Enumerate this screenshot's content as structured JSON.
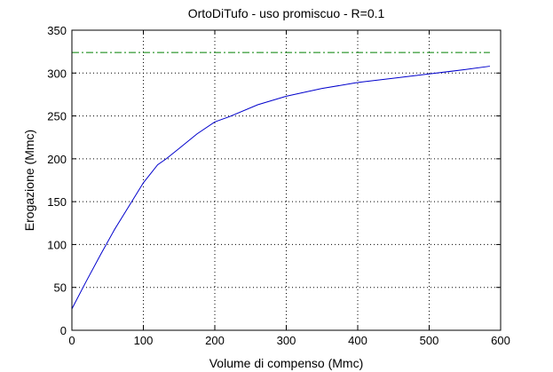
{
  "chart_data": {
    "type": "line",
    "title": "OrtoDiTufo  -  uso promiscuo  -   R=0.1",
    "xlabel": "Volume di compenso (Mmc)",
    "ylabel": "Erogazione (Mmc)",
    "xlim": [
      0,
      600
    ],
    "ylim": [
      0,
      350
    ],
    "xticks": [
      0,
      100,
      200,
      300,
      400,
      500,
      600
    ],
    "yticks": [
      0,
      50,
      100,
      150,
      200,
      250,
      300,
      350
    ],
    "xtick_labels": [
      "0",
      "100",
      "200",
      "300",
      "400",
      "500",
      "600"
    ],
    "ytick_labels": [
      "0",
      "50",
      "100",
      "150",
      "200",
      "250",
      "300",
      "350"
    ],
    "grid": true,
    "grid_style": "dotted",
    "series": [
      {
        "style": "solid",
        "color": "#0000cc",
        "x": [
          0,
          20,
          40,
          60,
          80,
          100,
          120,
          132,
          150,
          175,
          200,
          220,
          260,
          300,
          350,
          400,
          450,
          500,
          550,
          585
        ],
        "y": [
          25,
          57,
          88,
          118,
          145,
          172,
          193,
          200,
          212,
          229,
          243,
          249,
          263,
          273,
          282,
          289,
          294,
          299,
          304,
          308
        ]
      },
      {
        "style": "dash-dot",
        "color": "#008000",
        "x": [
          0,
          585
        ],
        "y": [
          324,
          324
        ]
      }
    ]
  }
}
